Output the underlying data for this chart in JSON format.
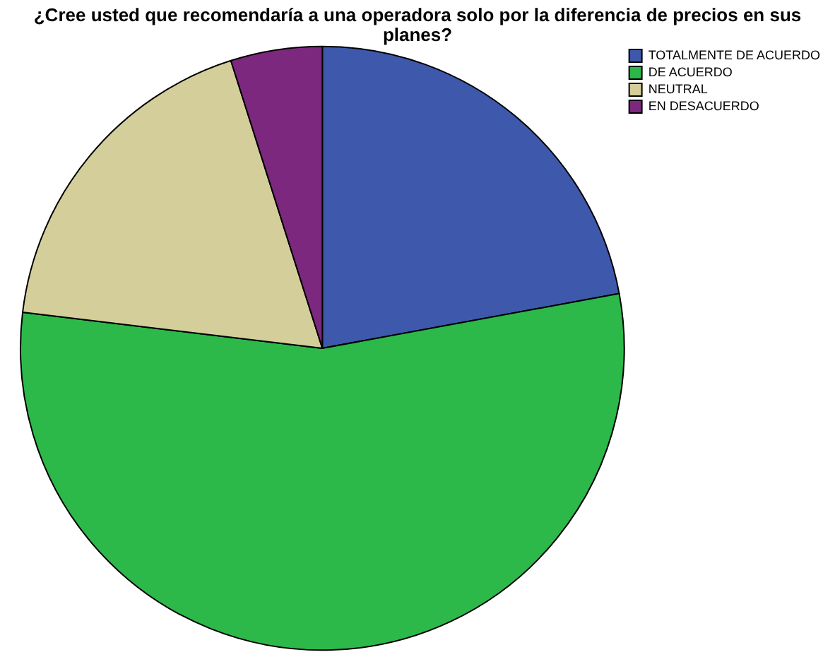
{
  "chart_data": {
    "type": "pie",
    "title": "¿Cree usted que recomendaría a una operadora solo por la diferencia de precios en sus planes?",
    "categories": [
      "TOTALMENTE DE ACUERDO",
      "DE ACUERDO",
      "NEUTRAL",
      "EN DESACUERDO"
    ],
    "values": [
      22.1,
      54.8,
      18.2,
      4.9
    ],
    "colors": [
      "#3e58ac",
      "#2db84a",
      "#d4cf9a",
      "#7d287f"
    ],
    "legend": "top right"
  }
}
